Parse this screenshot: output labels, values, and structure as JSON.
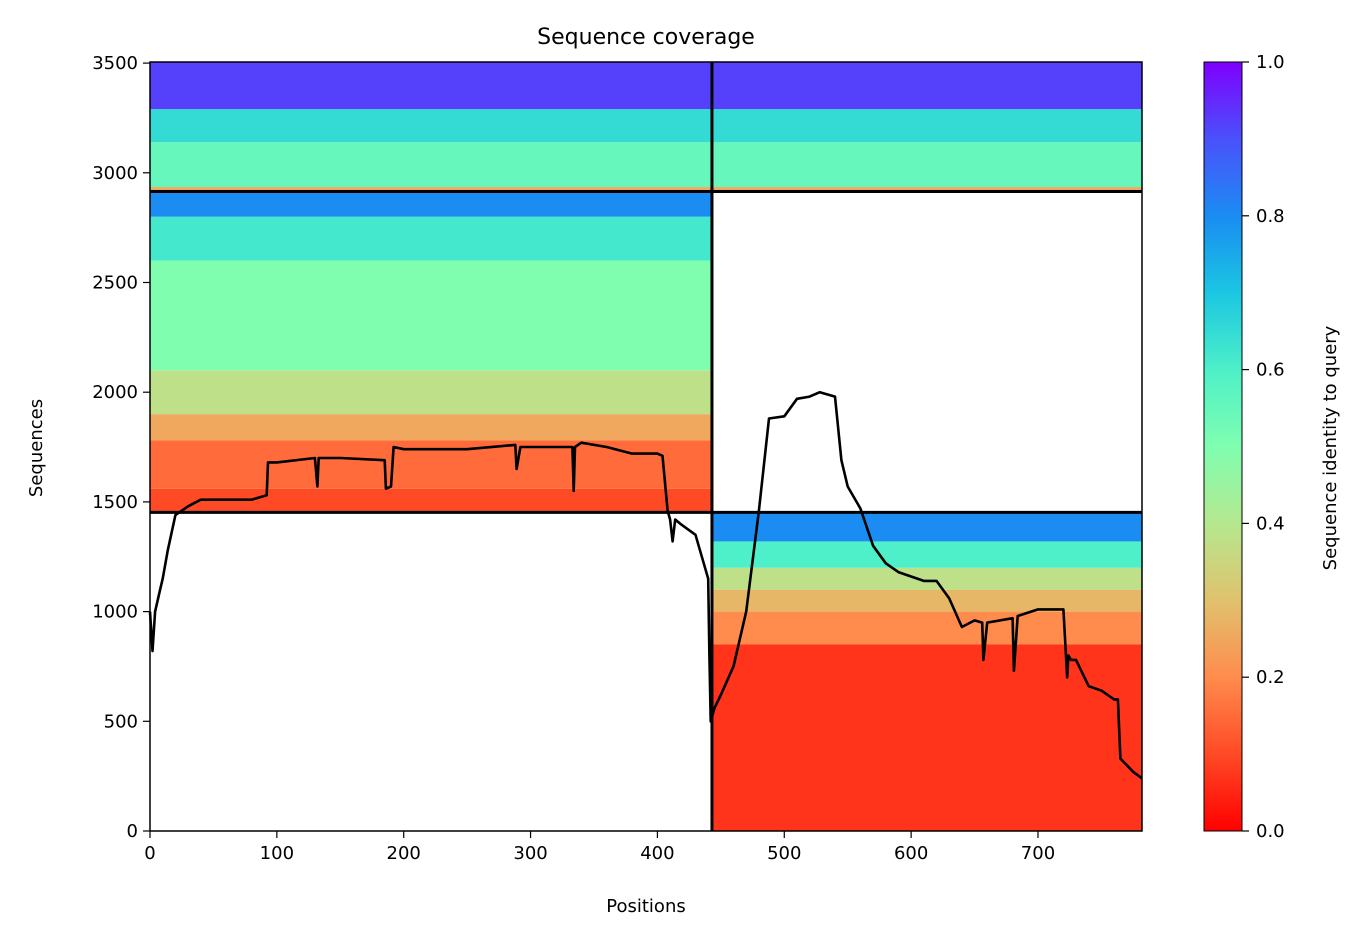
{
  "chart_data": {
    "type": "heatmap",
    "title": "Sequence coverage",
    "xlabel": "Positions",
    "ylabel": "Sequences",
    "xlim": [
      0,
      782
    ],
    "ylim": [
      0,
      3505
    ],
    "x_ticks": [
      0,
      100,
      200,
      300,
      400,
      500,
      600,
      700
    ],
    "y_ticks": [
      0,
      500,
      1000,
      1500,
      2000,
      2500,
      3000,
      3500
    ],
    "colorbar": {
      "label": "Sequence identity to query",
      "range": [
        0.0,
        1.0
      ],
      "ticks": [
        "0.0",
        "0.2",
        "0.4",
        "0.6",
        "0.8",
        "1.0"
      ],
      "colormap": "rainbow_r"
    },
    "grid": false,
    "block_boundaries": {
      "x_split": 443,
      "y_splits": [
        1452,
        2915
      ]
    },
    "blocks": [
      {
        "x_range": [
          0,
          443
        ],
        "y_range": [
          2915,
          3505
        ],
        "identity_bands": [
          [
            2915,
            2935,
            0.25
          ],
          [
            2935,
            3140,
            0.55
          ],
          [
            3140,
            3290,
            0.65
          ],
          [
            3290,
            3505,
            0.92
          ]
        ]
      },
      {
        "x_range": [
          443,
          782
        ],
        "y_range": [
          2915,
          3505
        ],
        "identity_bands": [
          [
            2915,
            2935,
            0.25
          ],
          [
            2935,
            3140,
            0.55
          ],
          [
            3140,
            3290,
            0.65
          ],
          [
            3290,
            3505,
            0.92
          ]
        ]
      },
      {
        "x_range": [
          0,
          443
        ],
        "y_range": [
          1452,
          2915
        ],
        "identity_bands": [
          [
            1452,
            1560,
            0.1
          ],
          [
            1560,
            1780,
            0.15
          ],
          [
            1780,
            1900,
            0.25
          ],
          [
            1900,
            2100,
            0.38
          ],
          [
            2100,
            2600,
            0.5
          ],
          [
            2600,
            2800,
            0.62
          ],
          [
            2800,
            2915,
            0.8
          ]
        ]
      },
      {
        "x_range": [
          443,
          782
        ],
        "y_range": [
          0,
          1452
        ],
        "identity_bands": [
          [
            0,
            850,
            0.07
          ],
          [
            850,
            1000,
            0.2
          ],
          [
            1000,
            1100,
            0.28
          ],
          [
            1100,
            1200,
            0.38
          ],
          [
            1200,
            1320,
            0.6
          ],
          [
            1320,
            1452,
            0.8
          ]
        ]
      }
    ],
    "coverage_line": {
      "x": [
        0,
        2,
        4,
        8,
        10,
        14,
        20,
        30,
        40,
        60,
        80,
        92,
        93,
        100,
        130,
        132,
        133,
        150,
        185,
        186,
        190,
        192,
        200,
        250,
        288,
        289,
        292,
        300,
        333,
        334,
        335,
        340,
        360,
        380,
        400,
        404,
        408,
        410,
        412,
        414,
        418,
        430,
        440,
        441,
        442,
        443,
        445,
        450,
        460,
        470,
        480,
        488,
        500,
        510,
        520,
        528,
        540,
        545,
        550,
        560,
        570,
        580,
        590,
        610,
        620,
        630,
        640,
        650,
        656,
        657,
        660,
        680,
        681,
        684,
        700,
        720,
        723,
        724,
        726,
        730,
        740,
        750,
        760,
        763,
        765,
        770,
        775,
        782
      ],
      "y": [
        1000,
        820,
        1000,
        1100,
        1150,
        1280,
        1440,
        1480,
        1510,
        1510,
        1510,
        1530,
        1680,
        1680,
        1700,
        1570,
        1700,
        1700,
        1690,
        1560,
        1570,
        1750,
        1740,
        1740,
        1760,
        1650,
        1750,
        1750,
        1750,
        1550,
        1750,
        1770,
        1750,
        1720,
        1720,
        1710,
        1460,
        1420,
        1320,
        1420,
        1400,
        1350,
        1150,
        800,
        500,
        520,
        560,
        620,
        750,
        1000,
        1460,
        1880,
        1890,
        1970,
        1980,
        2000,
        1980,
        1690,
        1570,
        1470,
        1300,
        1220,
        1180,
        1140,
        1140,
        1060,
        930,
        960,
        950,
        780,
        950,
        970,
        730,
        980,
        1010,
        1010,
        700,
        800,
        780,
        780,
        660,
        640,
        600,
        600,
        330,
        300,
        270,
        240
      ]
    }
  }
}
